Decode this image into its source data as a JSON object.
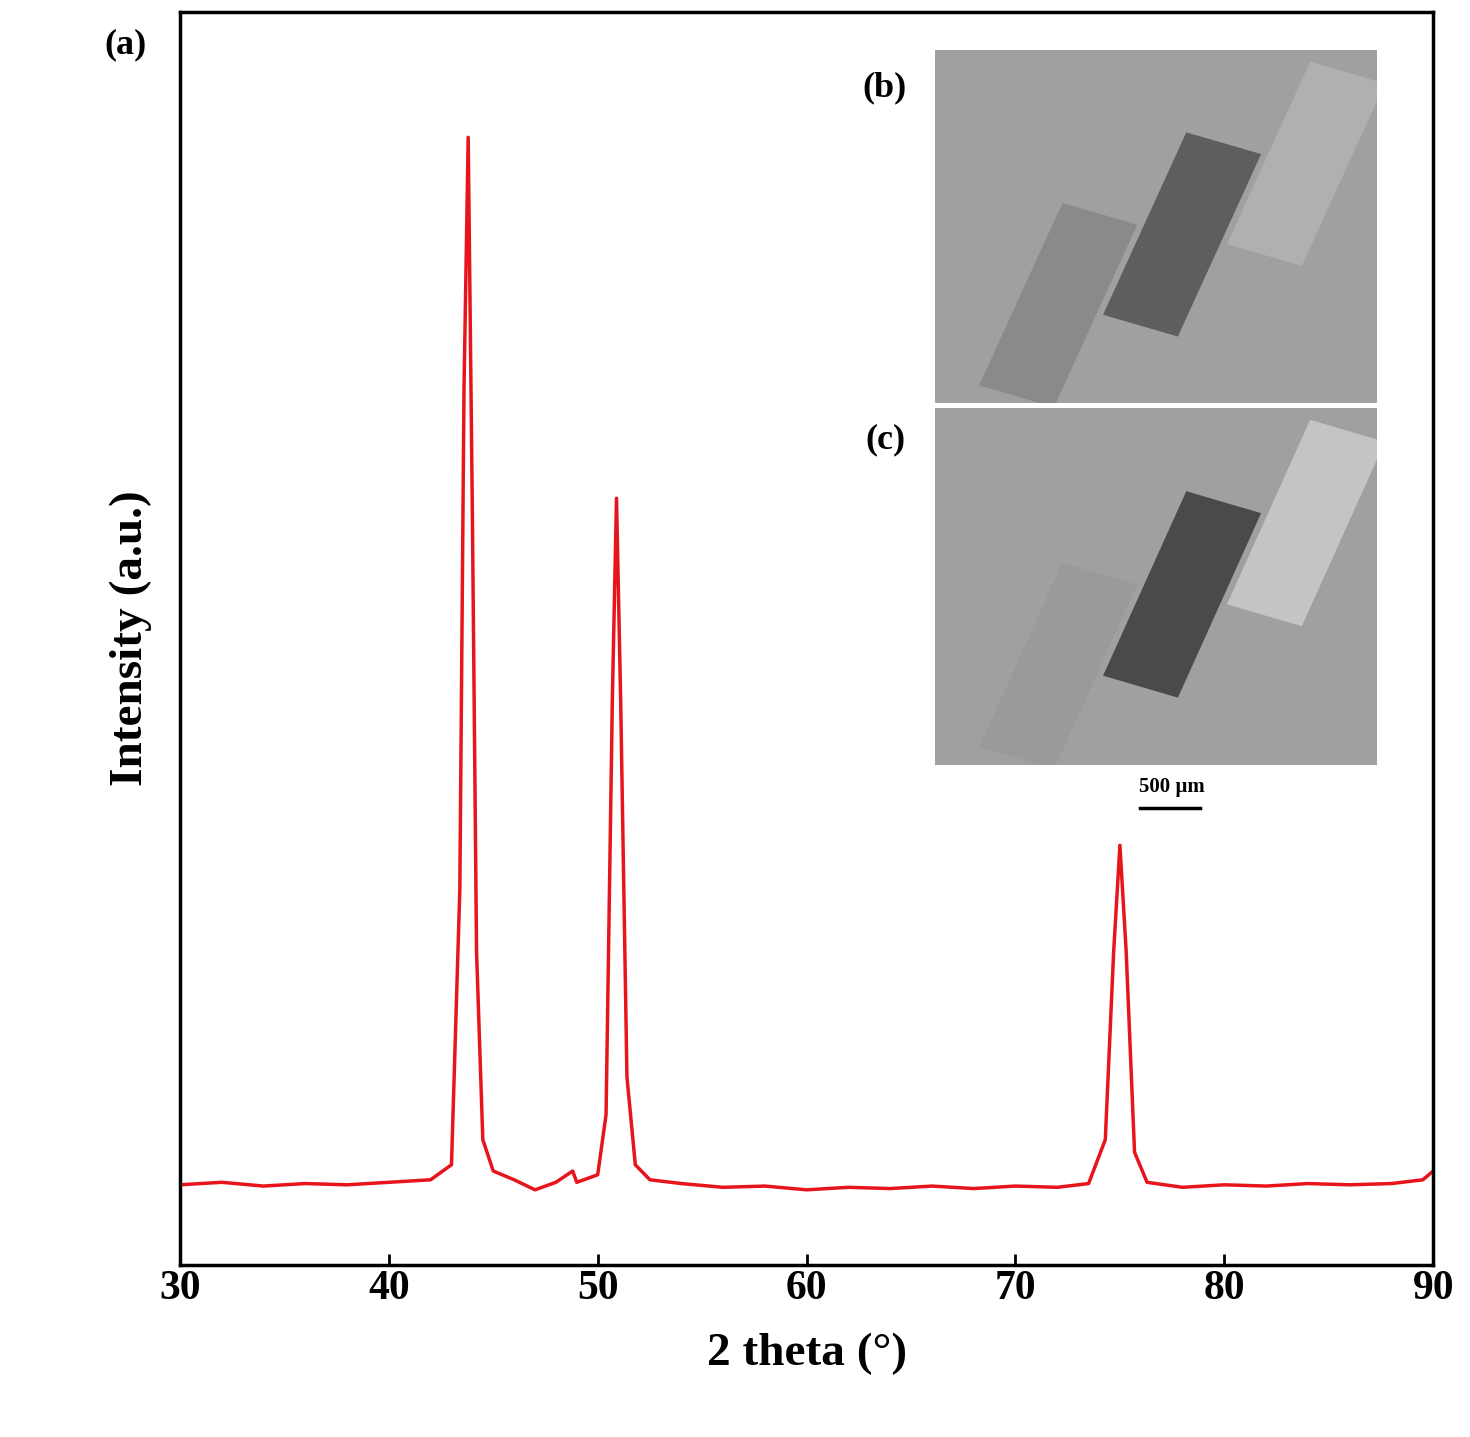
{
  "chart_data": {
    "type": "line",
    "x_label": "2 theta (°)",
    "y_label": "Intensity (a.u.)",
    "annotations": [
      "(a)",
      "(b)",
      "(c)",
      "500 µm"
    ],
    "x": [
      30,
      32,
      34,
      36,
      38,
      40,
      42,
      43.0,
      43.4,
      43.6,
      43.8,
      44.0,
      44.2,
      44.5,
      45,
      46,
      47,
      48,
      48.8,
      49,
      50,
      50.4,
      50.7,
      50.9,
      51.1,
      51.4,
      51.8,
      52.5,
      54,
      56,
      58,
      60,
      62,
      64,
      66,
      68,
      70,
      72,
      73.5,
      74.3,
      74.7,
      75.0,
      75.3,
      75.7,
      76.3,
      78,
      80,
      82,
      84,
      86,
      88,
      89.5,
      90
    ],
    "values": [
      6.4,
      6.6,
      6.3,
      6.5,
      6.4,
      6.6,
      6.8,
      8,
      30,
      70,
      90,
      60,
      25,
      10,
      7.5,
      6.8,
      6.0,
      6.6,
      7.5,
      6.6,
      7.2,
      12,
      45,
      61.2,
      45,
      15,
      8,
      6.8,
      6.5,
      6.2,
      6.3,
      6.0,
      6.2,
      6.1,
      6.3,
      6.1,
      6.3,
      6.2,
      6.5,
      10,
      25,
      33.5,
      25,
      9,
      6.6,
      6.2,
      6.4,
      6.3,
      6.5,
      6.4,
      6.5,
      6.8,
      7.5
    ],
    "color": "#e8141b",
    "xlim": [
      30,
      90
    ],
    "xticks": [
      30,
      40,
      50,
      60,
      70,
      80,
      90
    ],
    "ylim": [
      0,
      100
    ],
    "tick_labels": "x"
  }
}
